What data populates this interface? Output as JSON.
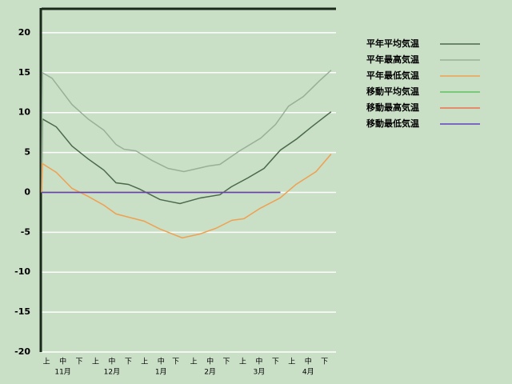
{
  "chart_data": {
    "type": "line",
    "xlim": [
      0,
      18
    ],
    "ylim": [
      -20,
      23.1
    ],
    "yticks": [
      -20,
      -15,
      -10,
      -5,
      0,
      5,
      10,
      15,
      20
    ],
    "grid": true,
    "xticks": [
      {
        "value": 0.3,
        "label": "上"
      },
      {
        "value": 1.3,
        "label": "中"
      },
      {
        "value": 2.3,
        "label": "下"
      },
      {
        "value": 3.3,
        "label": "上"
      },
      {
        "value": 4.3,
        "label": "中"
      },
      {
        "value": 5.3,
        "label": "下"
      },
      {
        "value": 6.3,
        "label": "上"
      },
      {
        "value": 7.3,
        "label": "中"
      },
      {
        "value": 8.2,
        "label": "下"
      },
      {
        "value": 9.3,
        "label": "上"
      },
      {
        "value": 10.3,
        "label": "中"
      },
      {
        "value": 11.3,
        "label": "下"
      },
      {
        "value": 12.3,
        "label": "上"
      },
      {
        "value": 13.3,
        "label": "中"
      },
      {
        "value": 14.3,
        "label": "下"
      },
      {
        "value": 15.3,
        "label": "上"
      },
      {
        "value": 16.3,
        "label": "中"
      },
      {
        "value": 17.3,
        "label": "下"
      }
    ],
    "months": [
      {
        "value": 1.3,
        "label": "11月"
      },
      {
        "value": 4.3,
        "label": "12月"
      },
      {
        "value": 7.3,
        "label": "1月"
      },
      {
        "value": 10.3,
        "label": "2月"
      },
      {
        "value": 13.3,
        "label": "3月"
      },
      {
        "value": 16.3,
        "label": "4月"
      }
    ],
    "series": [
      {
        "name": "平年平均気温",
        "color": "#4a6a4a",
        "x": [
          0,
          0.05,
          0.9,
          1.86,
          2.84,
          3.8,
          4.55,
          5.3,
          6.0,
          7.24,
          8.46,
          9.7,
          10.9,
          11.6,
          12.6,
          13.6,
          14.6,
          15.6,
          16.5,
          17.7
        ],
        "values": [
          0,
          9.2,
          8.2,
          5.8,
          4.2,
          2.8,
          1.2,
          1,
          0.4,
          -0.9,
          -1.4,
          -0.7,
          -0.3,
          0.7,
          1.8,
          3,
          5.3,
          6.7,
          8.2,
          10.1
        ]
      },
      {
        "name": "平年最高気温",
        "color": "#98b098",
        "x": [
          0,
          0.05,
          0.64,
          1.86,
          2.84,
          3.8,
          4.55,
          5.04,
          5.77,
          6.75,
          7.73,
          8.7,
          10.2,
          10.9,
          12.1,
          13.4,
          14.3,
          15.1,
          16,
          17,
          17.7
        ],
        "values": [
          0,
          15,
          14.3,
          11,
          9.2,
          7.8,
          6,
          5.4,
          5.2,
          4,
          3,
          2.6,
          3.3,
          3.5,
          5.2,
          6.8,
          8.5,
          10.8,
          12,
          14,
          15.3
        ]
      },
      {
        "name": "平年最低気温",
        "color": "#f0a050",
        "x": [
          0,
          0.05,
          0.9,
          1.86,
          2.84,
          3.8,
          4.55,
          5.3,
          6.26,
          7.24,
          8.6,
          9.7,
          10.66,
          11.64,
          12.37,
          13.36,
          14.58,
          15.56,
          16.78,
          17.7
        ],
        "values": [
          0,
          3.6,
          2.5,
          0.5,
          -0.5,
          -1.6,
          -2.7,
          -3.1,
          -3.6,
          -4.6,
          -5.7,
          -5.2,
          -4.5,
          -3.5,
          -3.3,
          -2,
          -0.7,
          1,
          2.6,
          4.8
        ]
      },
      {
        "name": "移動平均気温",
        "color": "#60c060",
        "x": [
          0,
          14.6
        ],
        "values": [
          0,
          0
        ]
      },
      {
        "name": "移動最高気温",
        "color": "#f07050",
        "x": [
          0,
          14.6
        ],
        "values": [
          0,
          0
        ]
      },
      {
        "name": "移動最低気温",
        "color": "#6040c0",
        "x": [
          0,
          14.6
        ],
        "values": [
          0,
          0
        ]
      }
    ]
  }
}
